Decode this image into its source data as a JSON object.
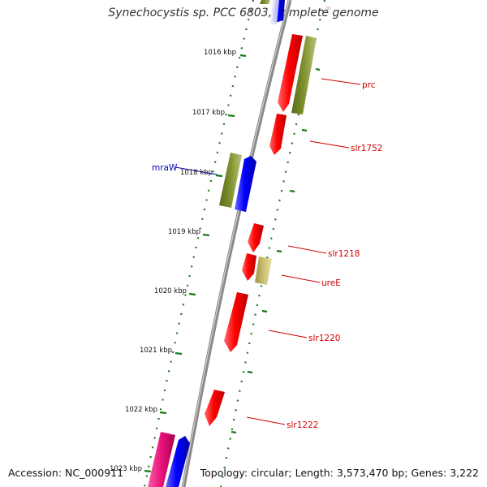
{
  "title": "Synechocystis sp. PCC 6803, complete genome",
  "accession": "Accession: NC_000911",
  "topology": "Topology: circular; Length: 3,573,470 bp; Genes: 3,222",
  "ticks": [
    "1016 kbp",
    "1017 kbp",
    "1018 kbp",
    "1019 kbp",
    "1020 kbp",
    "1021 kbp",
    "1022 kbp",
    "1023 kbp"
  ],
  "gene_labels": [
    "prc",
    "slr1752",
    "mraW",
    "slr1218",
    "ureE",
    "slr1220",
    "slr1222"
  ],
  "colors": {
    "backbone": "#8a8a8a",
    "forward_gene": "#ff0000",
    "reverse_gene": "#0000ff",
    "olive_gene": "#7a8c2a",
    "khaki_gene": "#c2b86a",
    "magenta_gene": "#e8127a",
    "tick_marks": "#1a7a1a",
    "label_red": "#d00000",
    "label_blue": "#0000aa"
  }
}
